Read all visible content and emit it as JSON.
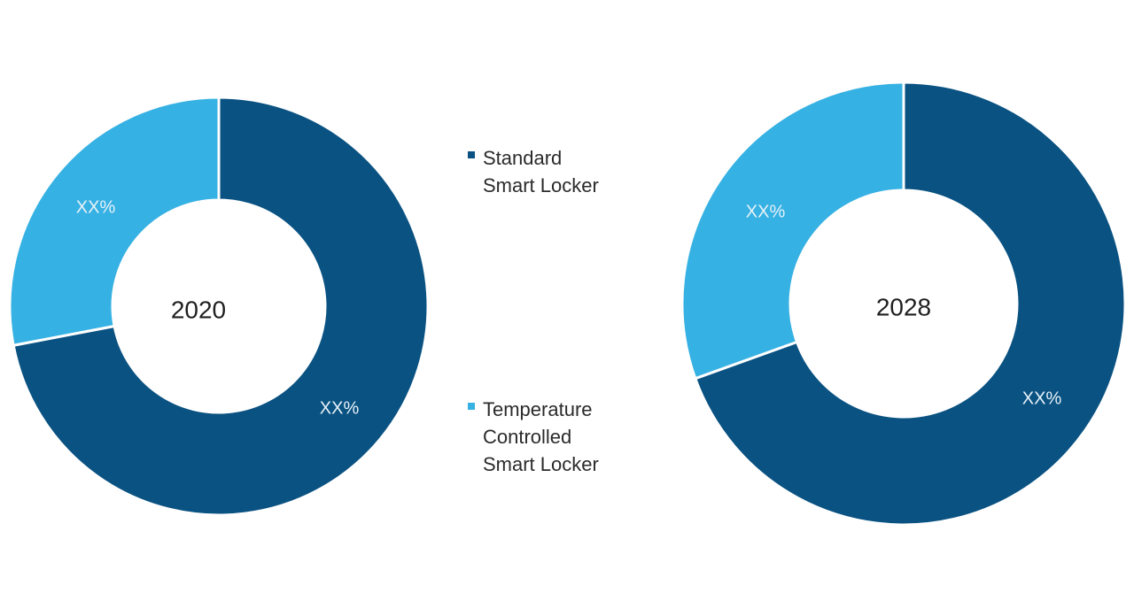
{
  "chart_data": [
    {
      "type": "pie",
      "center_label": "2020",
      "categories": [
        "Standard Smart Locker",
        "Temperature Controlled Smart Locker"
      ],
      "values": [
        72,
        28
      ],
      "value_labels": [
        "XX%",
        "XX%"
      ],
      "colors": [
        "#0a5282",
        "#36b1e3"
      ]
    },
    {
      "type": "pie",
      "center_label": "2028",
      "categories": [
        "Standard Smart Locker",
        "Temperature Controlled Smart Locker"
      ],
      "values": [
        69.5,
        30.5
      ],
      "value_labels": [
        "XX%",
        "XX%"
      ],
      "colors": [
        "#0a5282",
        "#36b1e3"
      ]
    }
  ],
  "legend": {
    "placement": "center",
    "items": [
      {
        "label_lines": [
          "Standard",
          "Smart Locker"
        ],
        "color": "#0a5282"
      },
      {
        "label_lines": [
          "Temperature",
          "Controlled",
          "Smart Locker"
        ],
        "color": "#36b1e3"
      }
    ]
  }
}
